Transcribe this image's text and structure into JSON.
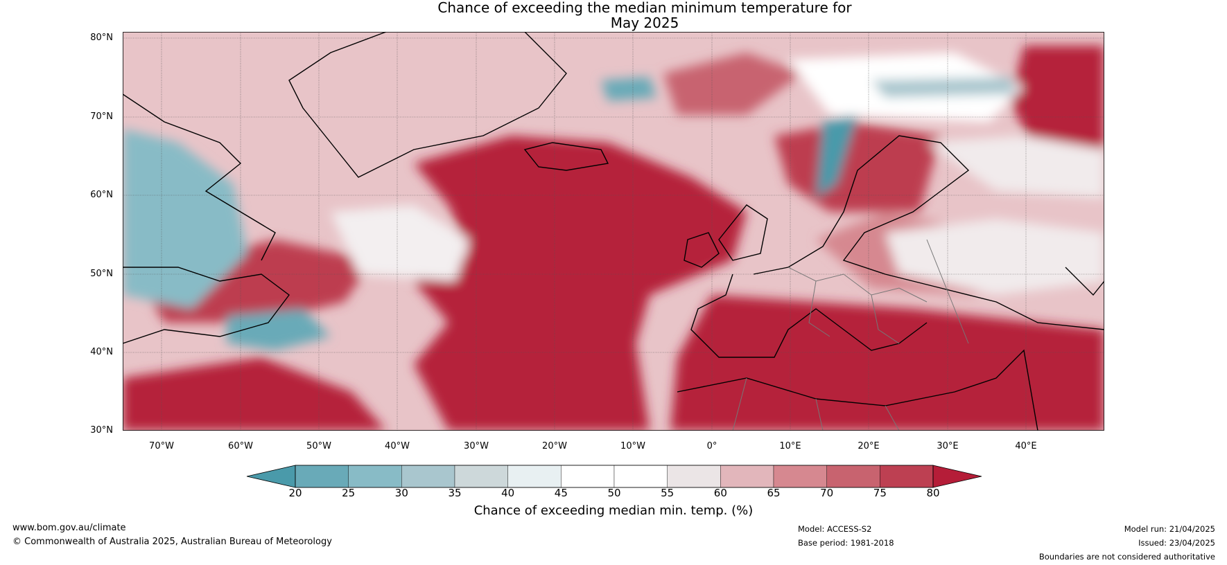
{
  "title": {
    "line1": "Chance of exceeding the median minimum temperature for",
    "line2": "May 2025"
  },
  "map": {
    "lat_labels": [
      "80°N",
      "70°N",
      "60°N",
      "50°N",
      "40°N",
      "30°N"
    ],
    "lon_labels": [
      "70°W",
      "60°W",
      "50°W",
      "40°W",
      "30°W",
      "20°W",
      "10°W",
      "0°",
      "10°E",
      "20°E",
      "30°E",
      "40°E"
    ],
    "colors": {
      "ocean_high": "#b5203a",
      "land_mixed": "#d98a92"
    }
  },
  "colorbar": {
    "ticks": [
      "20",
      "25",
      "30",
      "35",
      "40",
      "45",
      "50",
      "55",
      "60",
      "65",
      "70",
      "75",
      "80"
    ],
    "colors": [
      "#4a9aaa",
      "#69aab8",
      "#88bbc6",
      "#a9c6ce",
      "#cdd8da",
      "#e8f0f2",
      "#ffffff",
      "#ffffff",
      "#ebe5e6",
      "#e2b6bb",
      "#d68890",
      "#c8636f",
      "#bd4052",
      "#b51d38"
    ],
    "label": "Chance of exceeding median min. temp. (%)"
  },
  "footer": {
    "website": "www.bom.gov.au/climate",
    "copyright": "© Commonwealth of Australia 2025, Australian Bureau of Meteorology",
    "model": "Model: ACCESS-S2",
    "base_period": "Base period: 1981-2018",
    "model_run": "Model run: 21/04/2025",
    "issued": "Issued: 23/04/2025",
    "disclaimer": "Boundaries are not considered authoritative"
  }
}
